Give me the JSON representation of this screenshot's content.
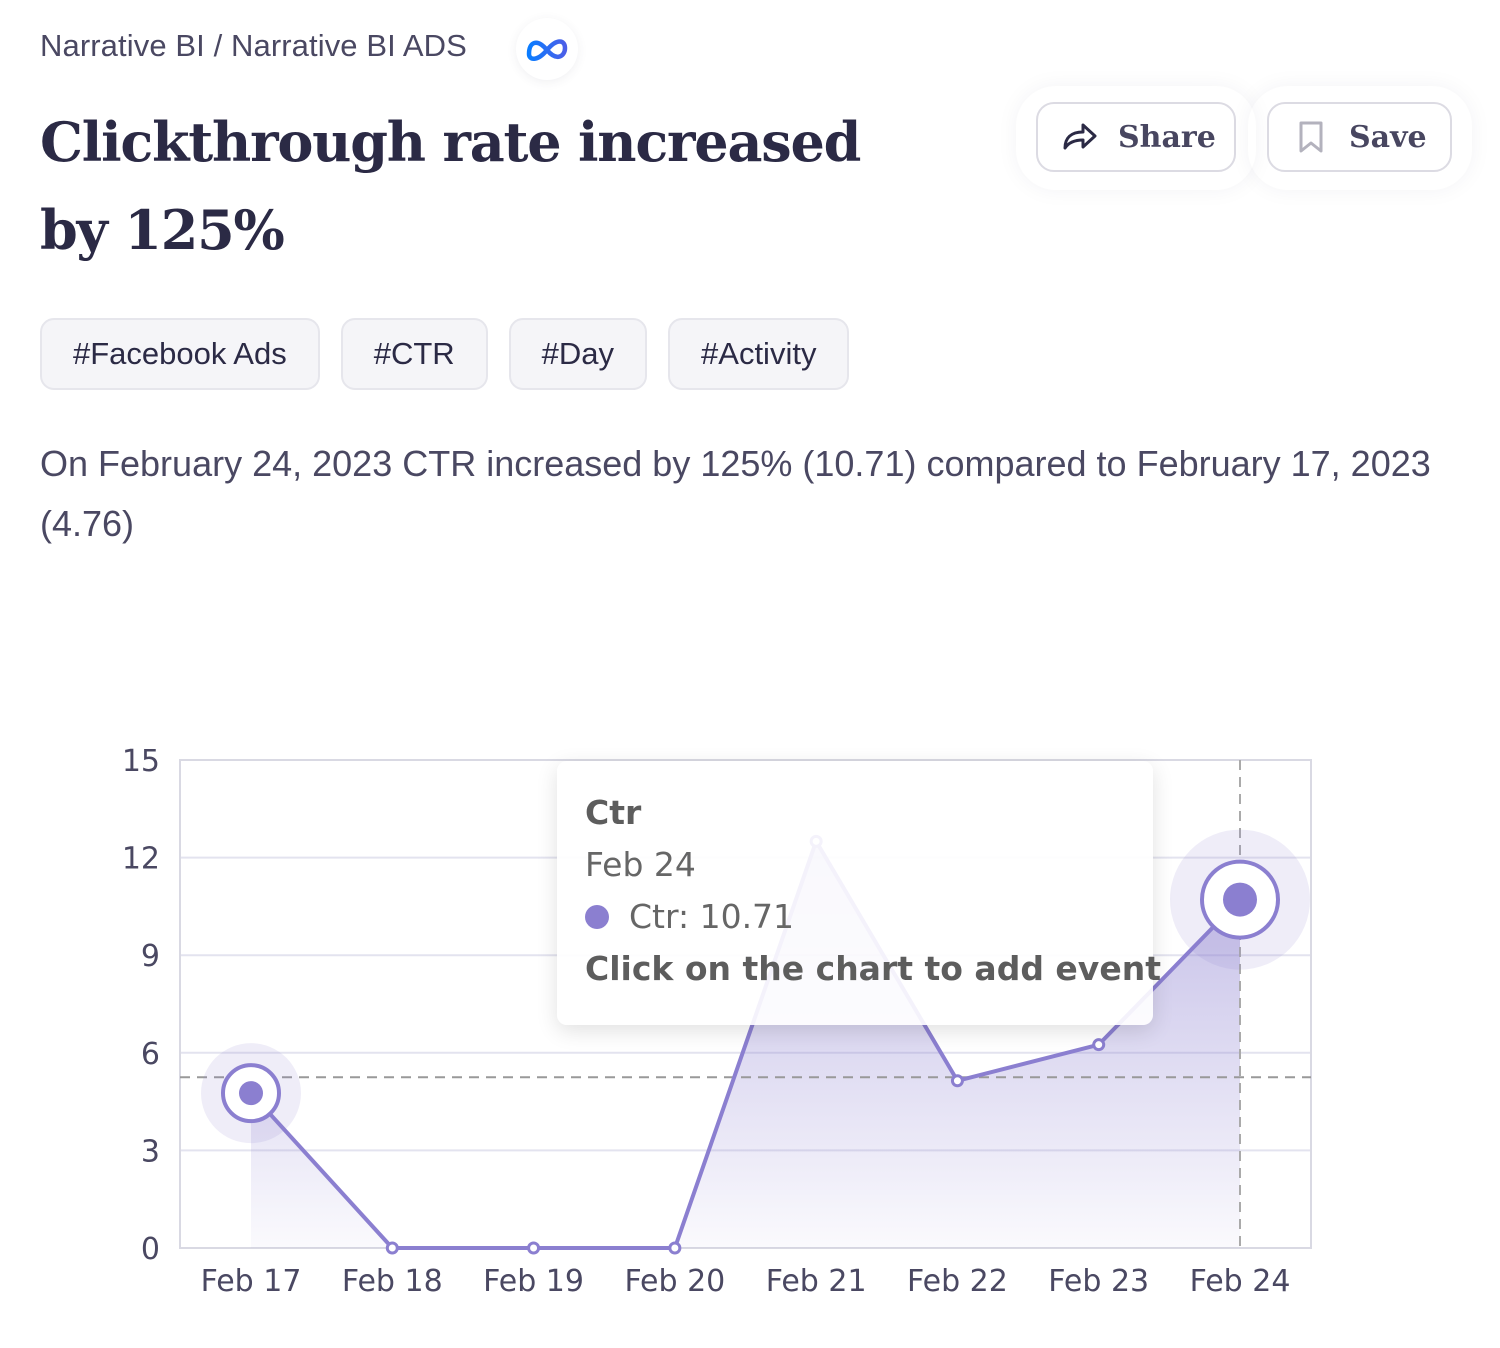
{
  "breadcrumb": {
    "text": "Narrative BI / Narrative BI ADS",
    "source_icon": "meta-logo-icon"
  },
  "header": {
    "title": "Clickthrough rate increased by 125%",
    "share_label": "Share",
    "save_label": "Save",
    "share_icon": "share-arrow-icon",
    "save_icon": "bookmark-icon"
  },
  "tags": [
    "#Facebook Ads",
    "#CTR",
    "#Day",
    "#Activity"
  ],
  "summary": "On February 24, 2023 CTR increased by 125% (10.71) compared to February 17, 2023 (4.76)",
  "colors": {
    "accent": "#8b7fd0",
    "text": "#2b2a45",
    "meta_blue": "#0668e1"
  },
  "tooltip": {
    "title": "Ctr",
    "date": "Feb 24",
    "value_text": "Ctr: 10.71",
    "hint": "Click on the chart to add event"
  },
  "chart_data": {
    "type": "area",
    "title": "",
    "xlabel": "",
    "ylabel": "",
    "categories": [
      "Feb 17",
      "Feb 18",
      "Feb 19",
      "Feb 20",
      "Feb 21",
      "Feb 22",
      "Feb 23",
      "Feb 24"
    ],
    "series": [
      {
        "name": "Ctr",
        "values": [
          4.76,
          0,
          0,
          0,
          12.5,
          5.14,
          6.25,
          10.71
        ],
        "color": "#8b7fd0"
      }
    ],
    "yticks": [
      0,
      3,
      6,
      9,
      12,
      15
    ],
    "ylim": [
      0,
      15
    ],
    "grid": true,
    "average_line": 5.25,
    "highlighted_points": [
      "Feb 17",
      "Feb 24"
    ],
    "crosshair_at": "Feb 24",
    "legend": "none"
  }
}
